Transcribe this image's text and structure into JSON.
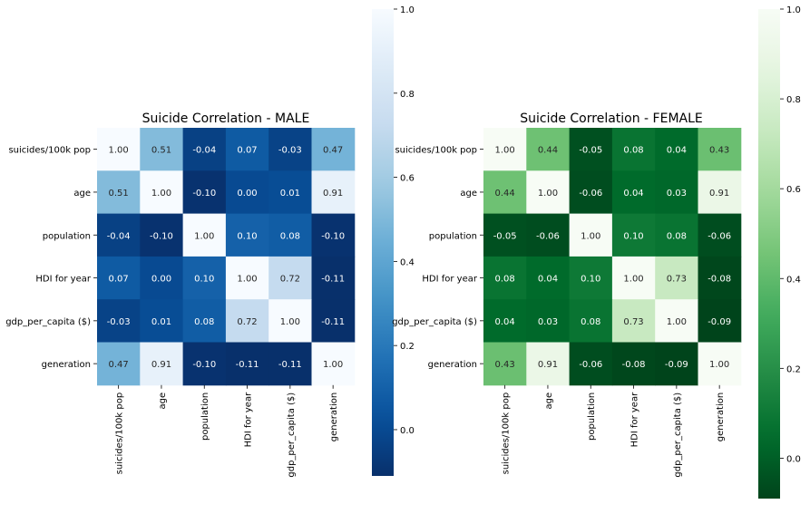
{
  "chart_data": [
    {
      "type": "heatmap",
      "title": "Suicide Correlation - MALE",
      "colormap": "Blues",
      "colormap_reversed": true,
      "colorbar_ticks": [
        0.0,
        0.2,
        0.4,
        0.6,
        0.8,
        1.0
      ],
      "colorbar_tick_labels": [
        "0.0",
        "0.2",
        "0.4",
        "0.6",
        "0.8",
        "1.0"
      ],
      "vmin": -0.11,
      "vmax": 1.0,
      "row_labels": [
        "suicides/100k pop",
        "age",
        "population",
        "HDI for year",
        "gdp_per_capita ($)",
        "generation"
      ],
      "col_labels": [
        "suicides/100k pop",
        "age",
        "population",
        "HDI for year",
        "gdp_per_capita ($)",
        "generation"
      ],
      "values": [
        [
          1.0,
          0.51,
          -0.04,
          0.07,
          -0.03,
          0.47
        ],
        [
          0.51,
          1.0,
          -0.1,
          0.0,
          0.01,
          0.91
        ],
        [
          -0.04,
          -0.1,
          1.0,
          0.1,
          0.08,
          -0.1
        ],
        [
          0.07,
          0.0,
          0.1,
          1.0,
          0.72,
          -0.11
        ],
        [
          -0.03,
          0.01,
          0.08,
          0.72,
          1.0,
          -0.11
        ],
        [
          0.47,
          0.91,
          -0.1,
          -0.11,
          -0.11,
          1.0
        ]
      ]
    },
    {
      "type": "heatmap",
      "title": "Suicide Correlation - FEMALE",
      "colormap": "Greens",
      "colormap_reversed": true,
      "colorbar_ticks": [
        0.0,
        0.2,
        0.4,
        0.6,
        0.8,
        1.0
      ],
      "colorbar_tick_labels": [
        "0.0",
        "0.2",
        "0.4",
        "0.6",
        "0.8",
        "1.0"
      ],
      "vmin": -0.09,
      "vmax": 1.0,
      "row_labels": [
        "suicides/100k pop",
        "age",
        "population",
        "HDI for year",
        "gdp_per_capita ($)",
        "generation"
      ],
      "col_labels": [
        "suicides/100k pop",
        "age",
        "population",
        "HDI for year",
        "gdp_per_capita ($)",
        "generation"
      ],
      "values": [
        [
          1.0,
          0.44,
          -0.05,
          0.08,
          0.04,
          0.43
        ],
        [
          0.44,
          1.0,
          -0.06,
          0.04,
          0.03,
          0.91
        ],
        [
          -0.05,
          -0.06,
          1.0,
          0.1,
          0.08,
          -0.06
        ],
        [
          0.08,
          0.04,
          0.1,
          1.0,
          0.73,
          -0.08
        ],
        [
          0.04,
          0.03,
          0.08,
          0.73,
          1.0,
          -0.09
        ],
        [
          0.43,
          0.91,
          -0.06,
          -0.08,
          -0.09,
          1.0
        ]
      ]
    }
  ]
}
